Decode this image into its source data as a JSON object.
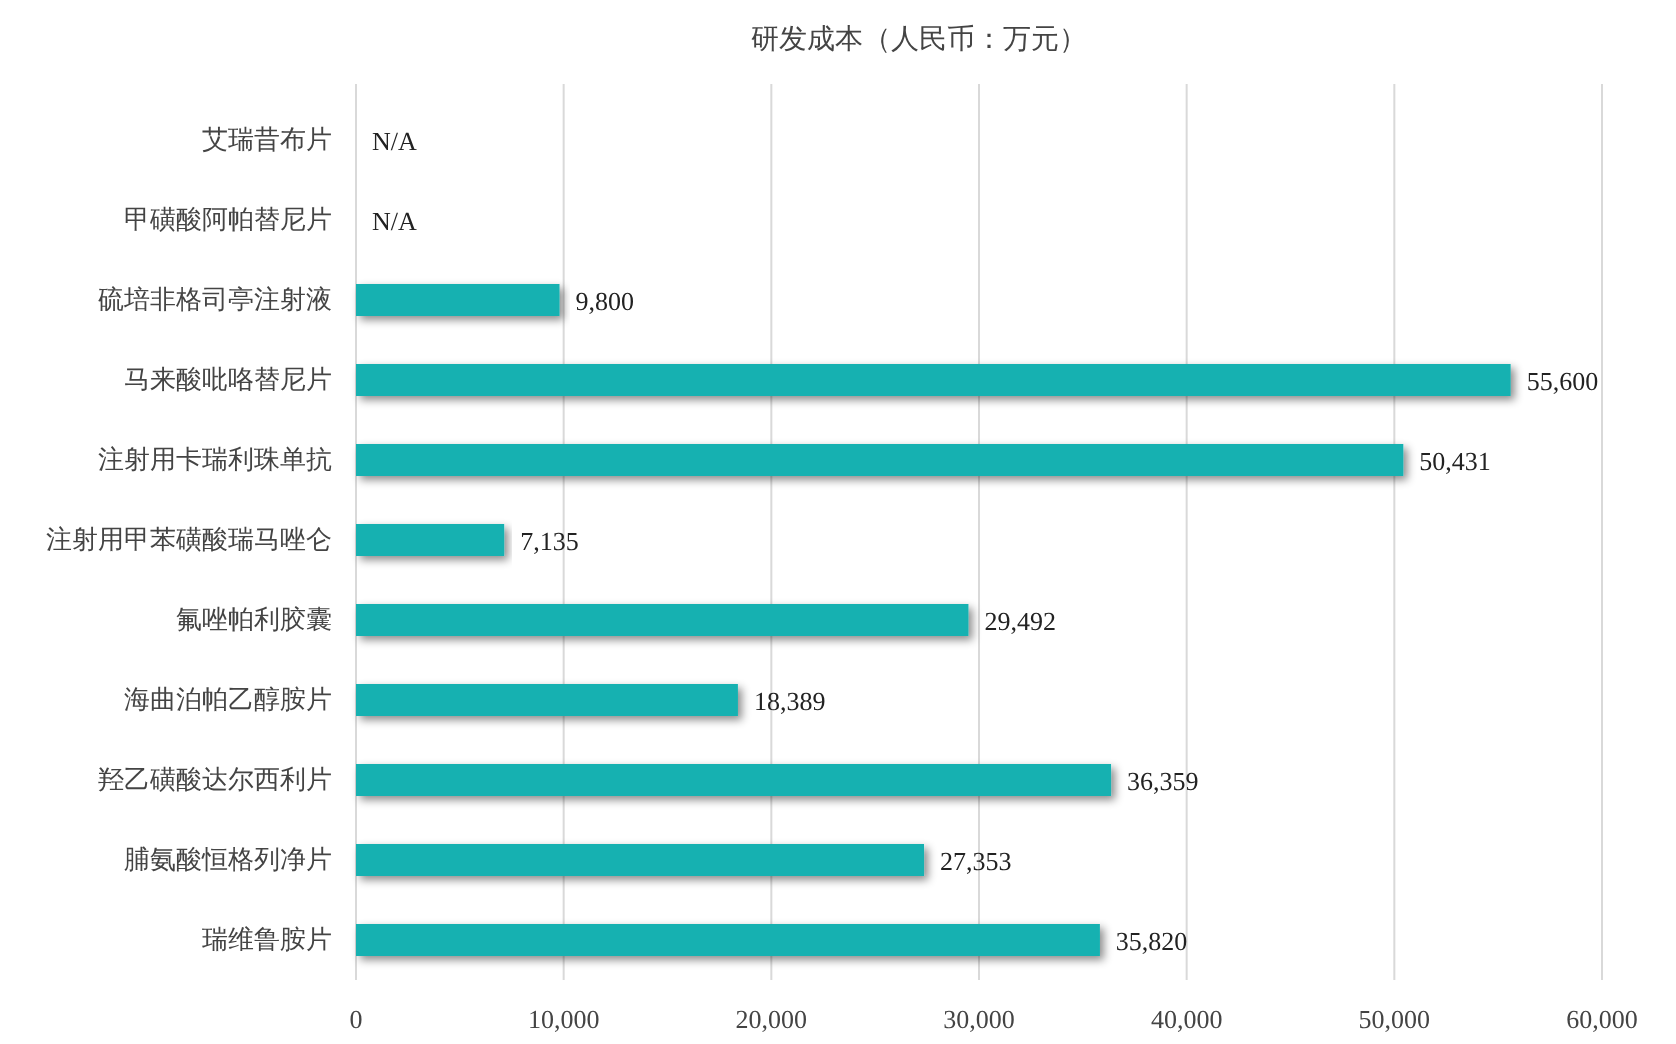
{
  "chart_data": {
    "type": "bar",
    "orientation": "horizontal",
    "title": "研发成本（人民币：万元）",
    "categories": [
      "艾瑞昔布片",
      "甲磺酸阿帕替尼片",
      "硫培非格司亭注射液",
      "马来酸吡咯替尼片",
      "注射用卡瑞利珠单抗",
      "注射用甲苯磺酸瑞马唑仑",
      "氟唑帕利胶囊",
      "海曲泊帕乙醇胺片",
      "羟乙磺酸达尔西利片",
      "脯氨酸恒格列净片",
      "瑞维鲁胺片"
    ],
    "values": [
      null,
      null,
      9800,
      55600,
      50431,
      7135,
      29492,
      18389,
      36359,
      27353,
      35820
    ],
    "value_labels": [
      "N/A",
      "N/A",
      "9,800",
      "55,600",
      "50,431",
      "7,135",
      "29,492",
      "18,389",
      "36,359",
      "27,353",
      "35,820"
    ],
    "color": "#13b1b1",
    "xlim": [
      0,
      60000
    ],
    "xticks": [
      0,
      {
        "value": 10000,
        "label": "10,000"
      },
      {
        "value": 20000,
        "label": "20,000"
      },
      {
        "value": 30000,
        "label": "30,000"
      },
      {
        "value": 40000,
        "label": "40,000"
      },
      {
        "value": 50000,
        "label": "50,000"
      },
      {
        "value": 60000,
        "label": "60,000"
      }
    ],
    "grid": "x"
  }
}
